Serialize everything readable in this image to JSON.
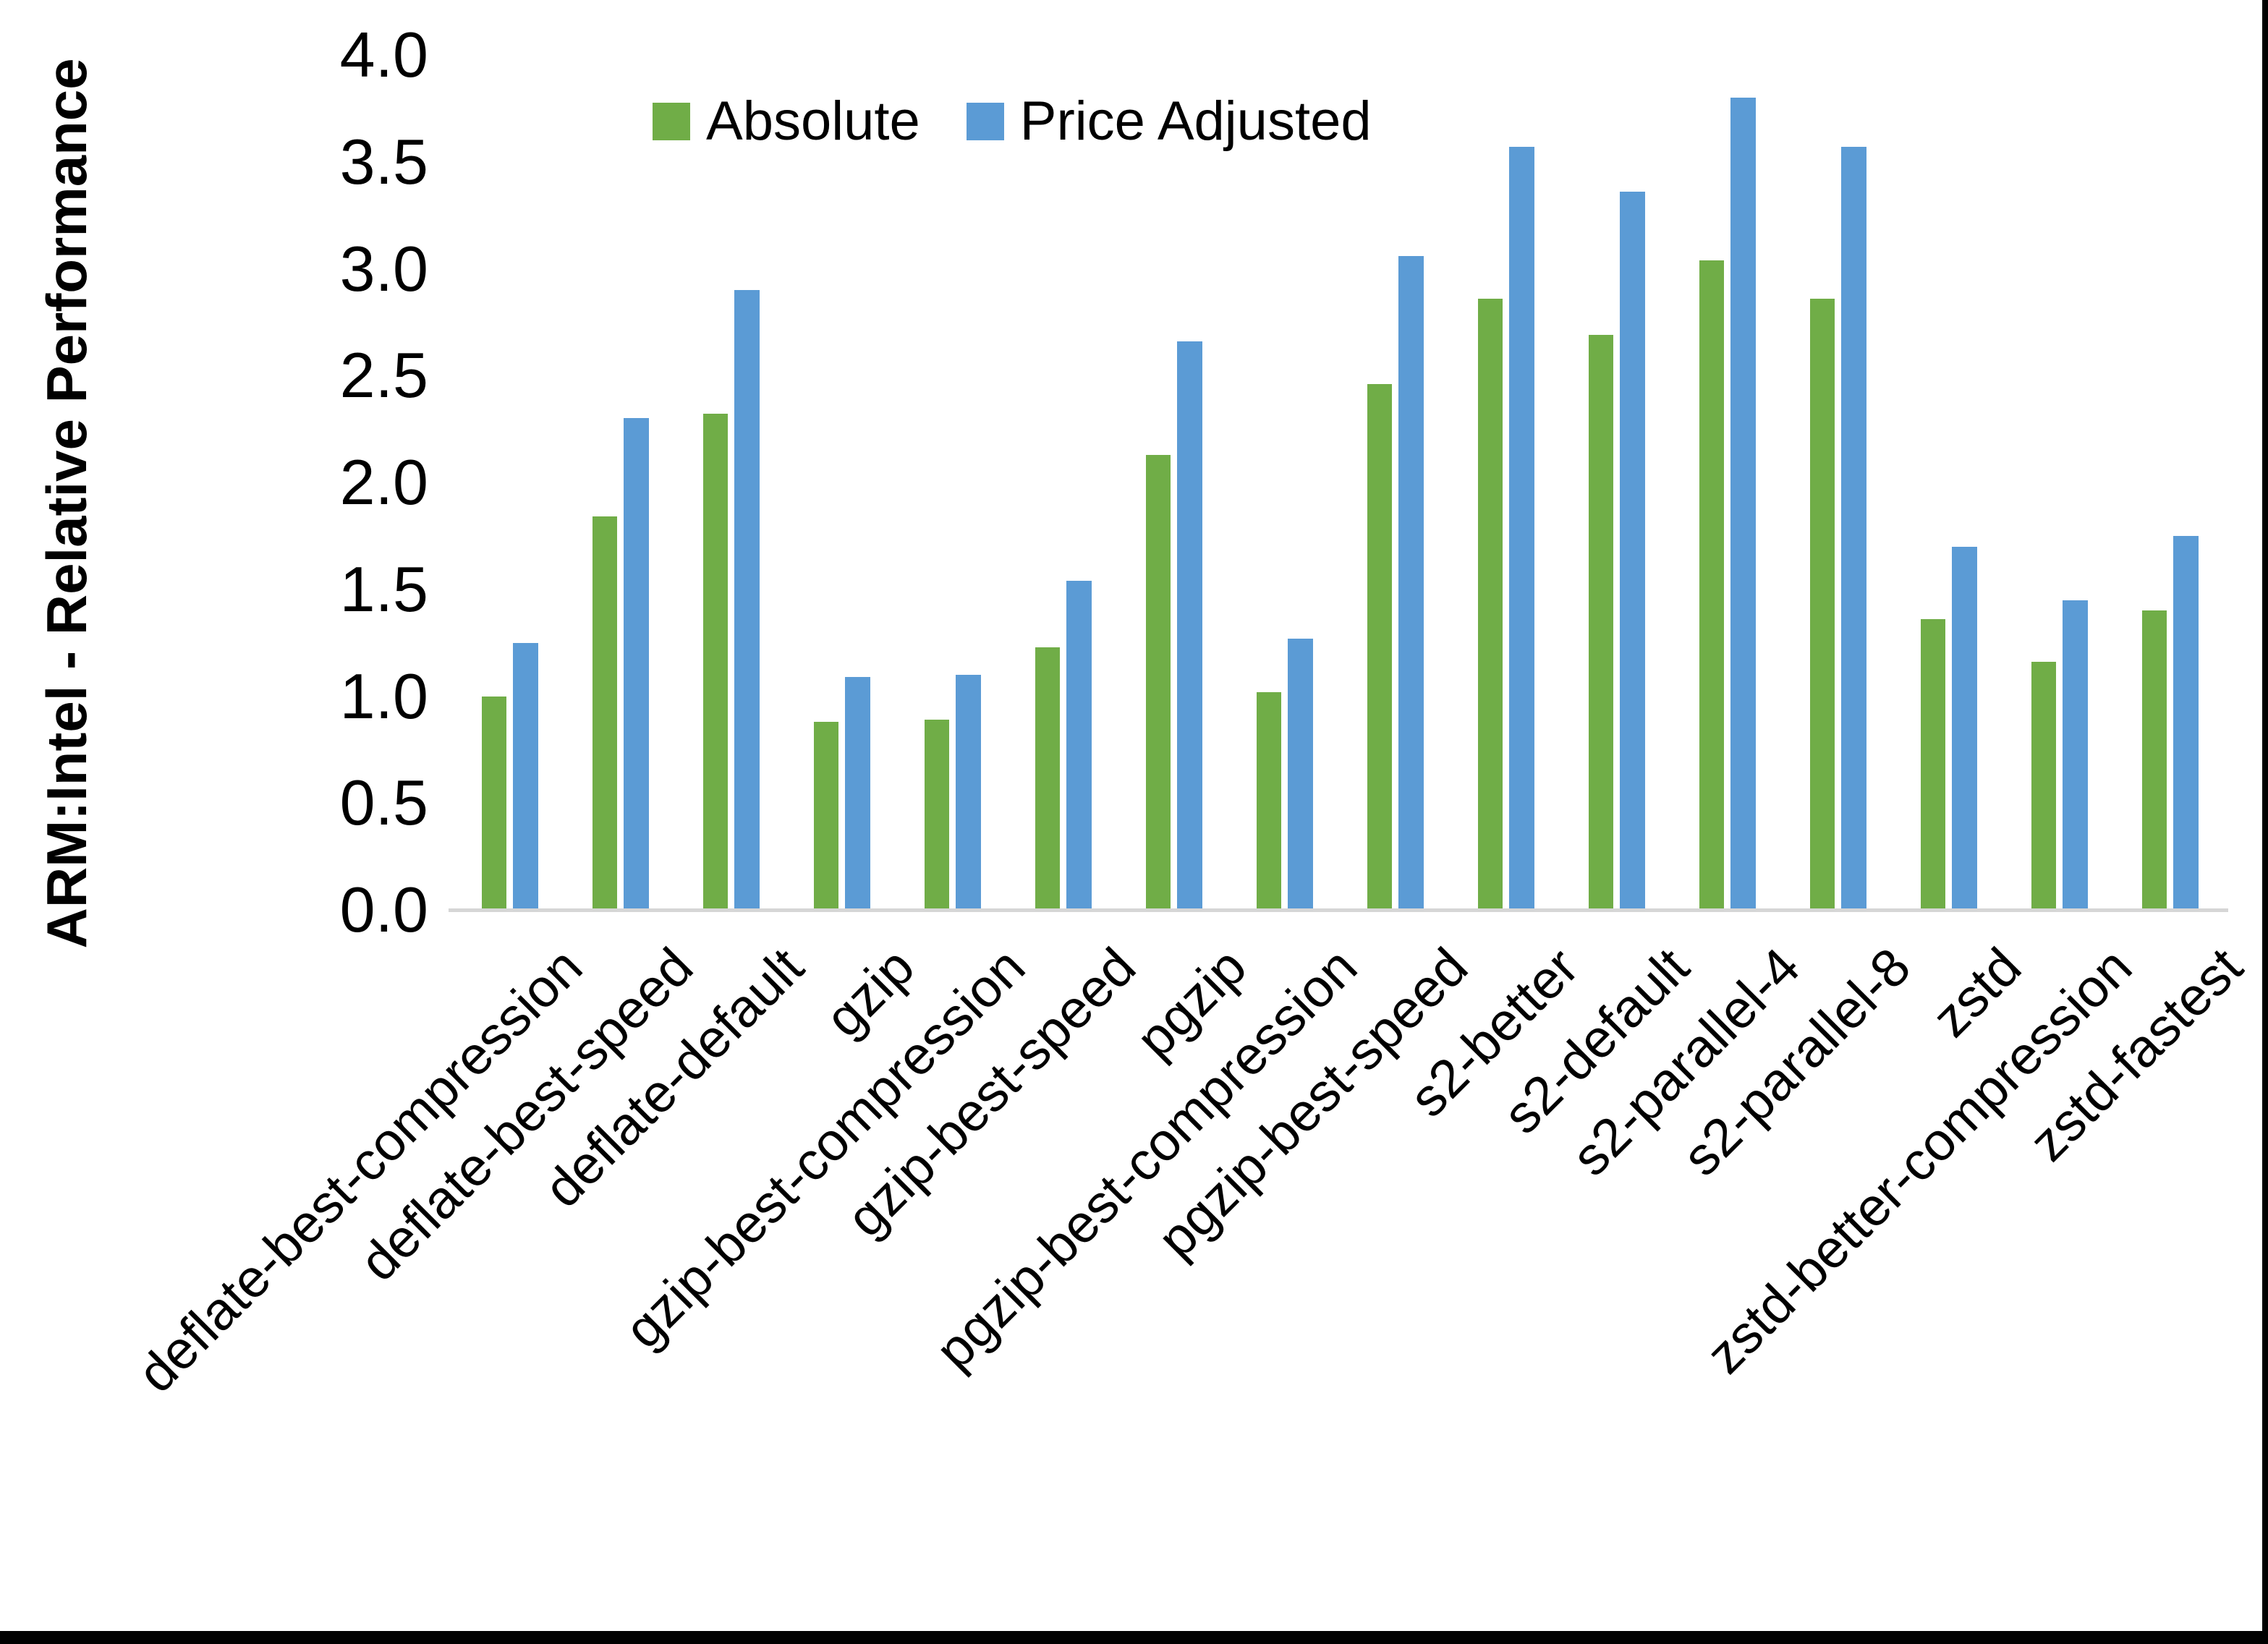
{
  "page": {
    "background": "#FFFFFF",
    "edge_border_color": "#000000"
  },
  "chart_data": {
    "type": "bar",
    "title": "",
    "xlabel": "",
    "ylabel": "ARM:Intel - Relative Performance",
    "ylim": [
      0.0,
      4.0
    ],
    "ytick_step": 0.5,
    "ytick_labels": [
      "0.0",
      "0.5",
      "1.0",
      "1.5",
      "2.0",
      "2.5",
      "3.0",
      "3.5",
      "4.0"
    ],
    "grid": false,
    "legend_position": "top-center",
    "axis_line_color": "#D6D6D6",
    "tick_label_color": "#000000",
    "categories": [
      "deflate-best-compression",
      "deflate-best-speed",
      "deflate-default",
      "gzip",
      "gzip-best-compression",
      "gzip-best-speed",
      "pgzip",
      "pgzip-best-compression",
      "pgzip-best-speed",
      "s2-better",
      "s2-default",
      "s2-parallel-4",
      "s2-parallel-8",
      "zstd",
      "zstd-better-compression",
      "zstd-fastest"
    ],
    "series": [
      {
        "name": "Absolute",
        "color": "#70AD47",
        "values": [
          1.0,
          1.84,
          2.32,
          0.88,
          0.89,
          1.23,
          2.13,
          1.02,
          2.46,
          2.86,
          2.69,
          3.04,
          2.86,
          1.36,
          1.16,
          1.4
        ]
      },
      {
        "name": "Price Adjusted",
        "color": "#5B9BD5",
        "values": [
          1.25,
          2.3,
          2.9,
          1.09,
          1.1,
          1.54,
          2.66,
          1.27,
          3.06,
          3.57,
          3.36,
          3.8,
          3.57,
          1.7,
          1.45,
          1.75
        ]
      }
    ]
  }
}
